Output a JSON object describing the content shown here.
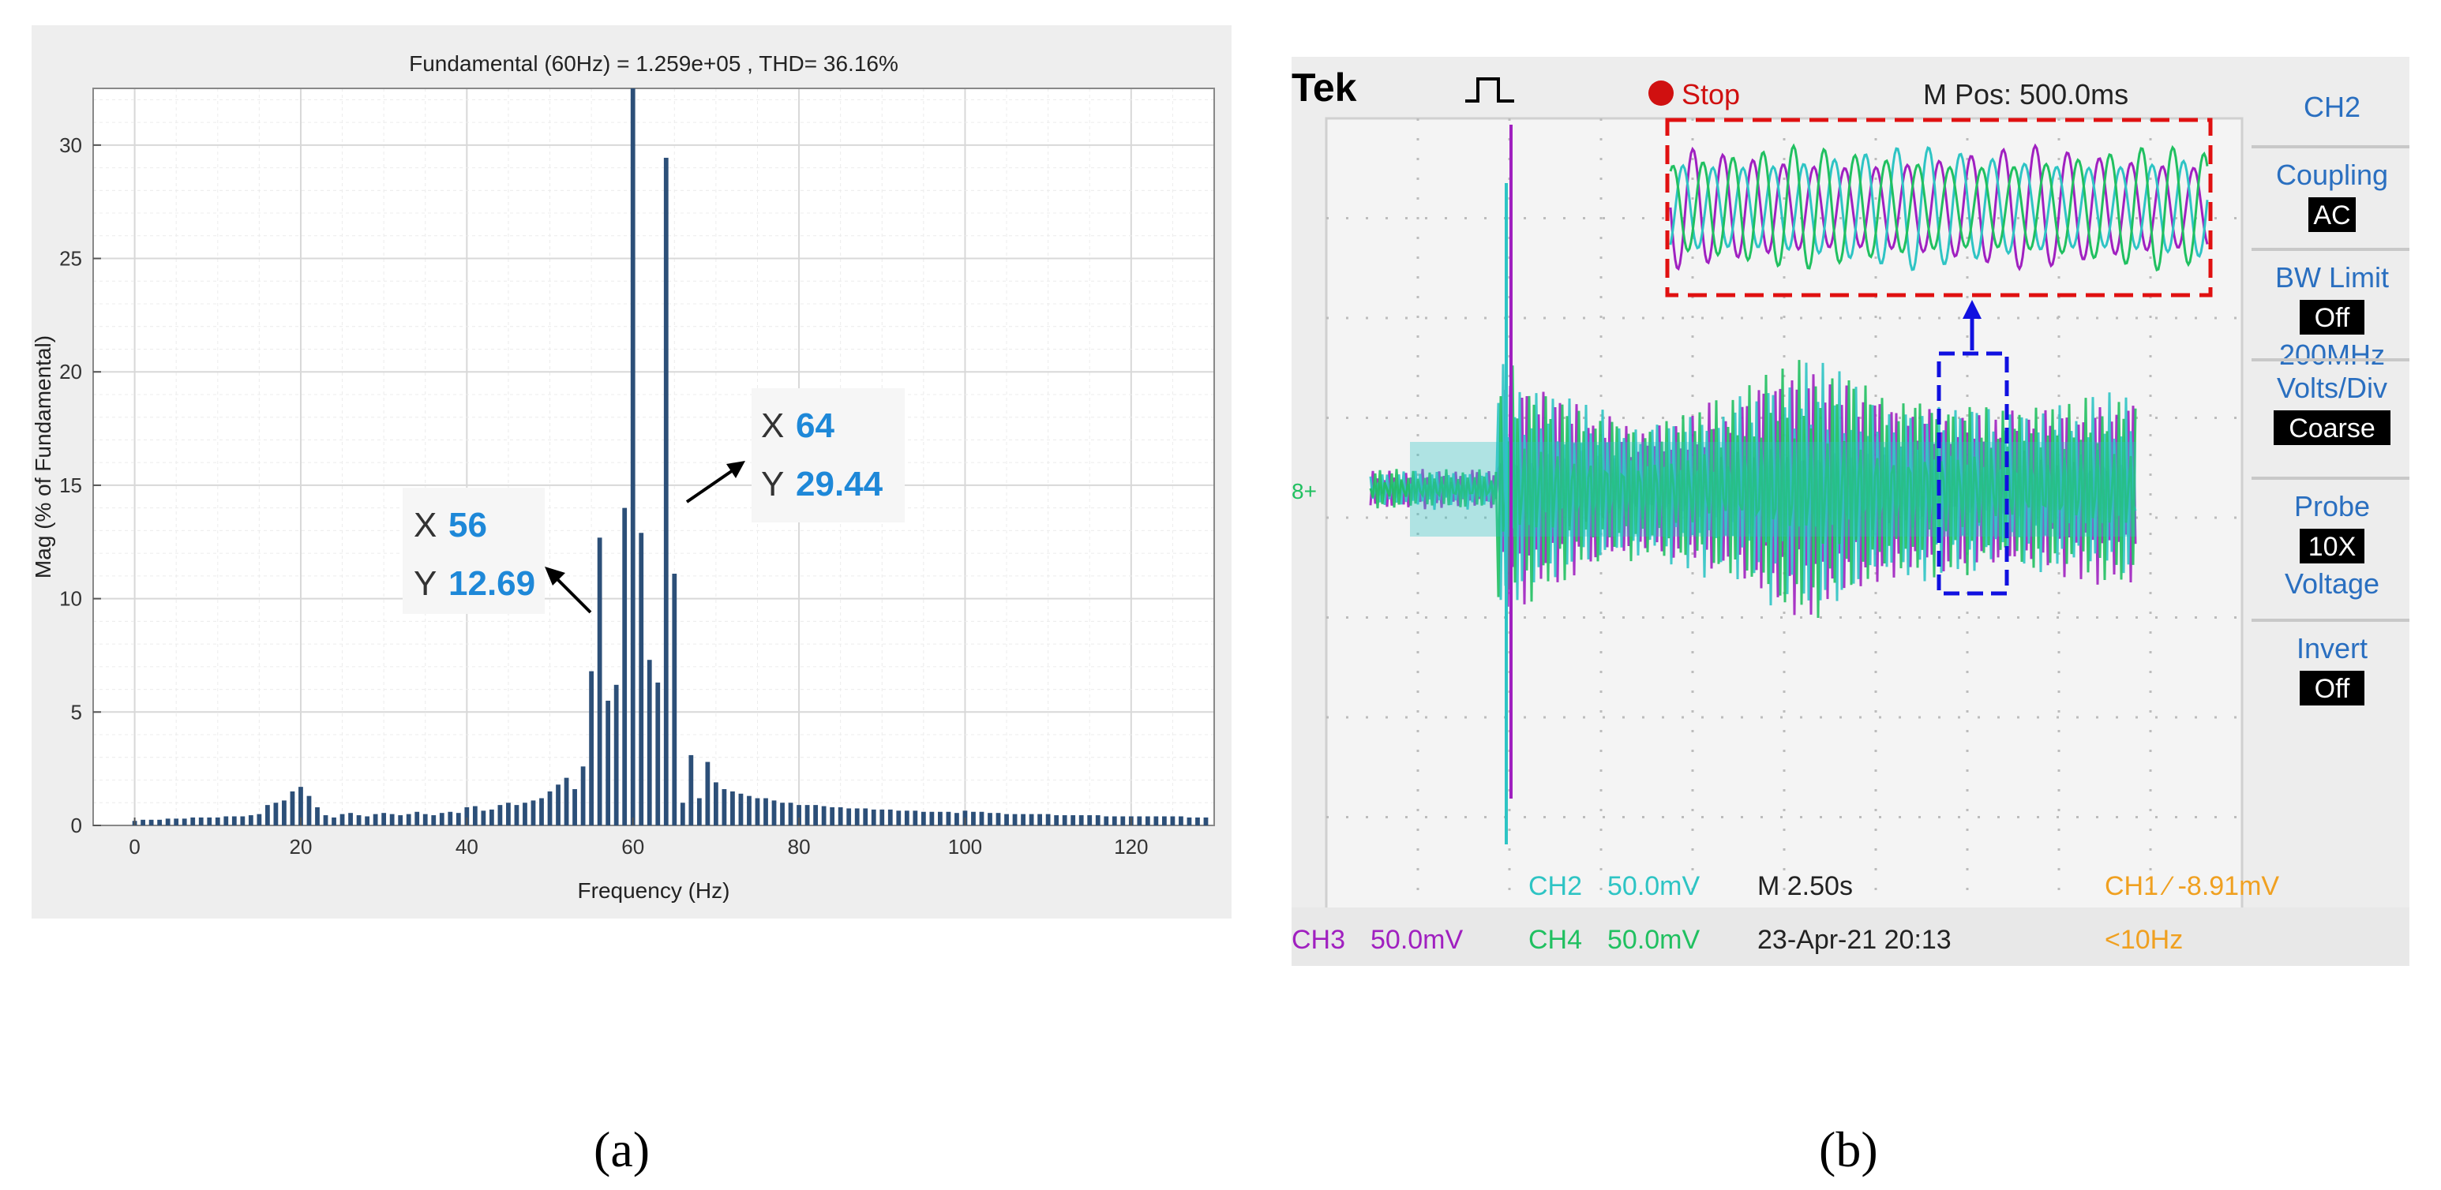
{
  "captions": {
    "a": "(a)",
    "b": "(b)"
  },
  "chart_data": [
    {
      "type": "bar",
      "title": "Fundamental (60Hz) = 1.259e+05 , THD= 36.16%",
      "xlabel": "Frequency (Hz)",
      "ylabel": "Mag (% of Fundamental)",
      "xlim": [
        -5,
        130
      ],
      "ylim": [
        0,
        32.5
      ],
      "xticks": [
        0,
        20,
        40,
        60,
        80,
        100,
        120
      ],
      "yticks": [
        0,
        5,
        10,
        15,
        20,
        25,
        30
      ],
      "grid": true,
      "bar_color": "#2c4f78",
      "x": [
        0,
        1,
        2,
        3,
        4,
        5,
        6,
        7,
        8,
        9,
        10,
        11,
        12,
        13,
        14,
        15,
        16,
        17,
        18,
        19,
        20,
        21,
        22,
        23,
        24,
        25,
        26,
        27,
        28,
        29,
        30,
        31,
        32,
        33,
        34,
        35,
        36,
        37,
        38,
        39,
        40,
        41,
        42,
        43,
        44,
        45,
        46,
        47,
        48,
        49,
        50,
        51,
        52,
        53,
        54,
        55,
        56,
        57,
        58,
        59,
        60,
        61,
        62,
        63,
        64,
        65,
        66,
        67,
        68,
        69,
        70,
        71,
        72,
        73,
        74,
        75,
        76,
        77,
        78,
        79,
        80,
        81,
        82,
        83,
        84,
        85,
        86,
        87,
        88,
        89,
        90,
        91,
        92,
        93,
        94,
        95,
        96,
        97,
        98,
        99,
        100,
        101,
        102,
        103,
        104,
        105,
        106,
        107,
        108,
        109,
        110,
        111,
        112,
        113,
        114,
        115,
        116,
        117,
        118,
        119,
        120,
        121,
        122,
        123,
        124,
        125,
        126,
        127,
        128,
        129
      ],
      "values": [
        0.2,
        0.25,
        0.25,
        0.25,
        0.3,
        0.3,
        0.3,
        0.35,
        0.35,
        0.35,
        0.35,
        0.4,
        0.4,
        0.4,
        0.45,
        0.5,
        0.9,
        1.0,
        1.1,
        1.5,
        1.7,
        1.3,
        0.8,
        0.45,
        0.35,
        0.5,
        0.55,
        0.45,
        0.4,
        0.5,
        0.55,
        0.5,
        0.45,
        0.5,
        0.6,
        0.5,
        0.45,
        0.55,
        0.6,
        0.55,
        0.8,
        0.85,
        0.65,
        0.7,
        0.9,
        1.0,
        0.9,
        1.0,
        1.1,
        1.2,
        1.5,
        1.8,
        2.1,
        1.6,
        2.6,
        6.8,
        12.69,
        5.5,
        6.2,
        14.0,
        32.5,
        12.9,
        7.3,
        6.3,
        29.44,
        11.1,
        1.0,
        3.1,
        1.2,
        2.8,
        1.9,
        1.6,
        1.5,
        1.4,
        1.3,
        1.2,
        1.2,
        1.1,
        1.0,
        1.0,
        0.9,
        0.9,
        0.9,
        0.85,
        0.8,
        0.8,
        0.75,
        0.75,
        0.75,
        0.7,
        0.7,
        0.7,
        0.65,
        0.65,
        0.65,
        0.6,
        0.6,
        0.6,
        0.6,
        0.55,
        0.65,
        0.6,
        0.6,
        0.55,
        0.55,
        0.5,
        0.5,
        0.5,
        0.5,
        0.5,
        0.5,
        0.45,
        0.45,
        0.45,
        0.45,
        0.45,
        0.45,
        0.4,
        0.4,
        0.4,
        0.4,
        0.4,
        0.4,
        0.4,
        0.4,
        0.4,
        0.4,
        0.35,
        0.35,
        0.35
      ],
      "annotations": [
        {
          "x_label": "X",
          "x_value": "56",
          "y_label": "Y",
          "y_value": "12.69"
        },
        {
          "x_label": "X",
          "x_value": "64",
          "y_label": "Y",
          "y_value": "29.44"
        }
      ]
    }
  ],
  "scope": {
    "brand": "Tek",
    "status": "Stop",
    "m_pos": "M Pos: 500.0ms",
    "menu": [
      {
        "label": "CH2",
        "value": ""
      },
      {
        "label": "Coupling",
        "value": "AC"
      },
      {
        "label": "BW Limit",
        "value": "Off",
        "extra": "200MHz"
      },
      {
        "label": "Volts/Div",
        "value": "Coarse"
      },
      {
        "label": "Probe",
        "value": "10X",
        "extra": "Voltage"
      },
      {
        "label": "Invert",
        "value": "Off"
      }
    ],
    "ch2": {
      "name": "CH2",
      "scale": "50.0mV"
    },
    "ch3": {
      "name": "CH3",
      "scale": "50.0mV"
    },
    "ch4": {
      "name": "CH4",
      "scale": "50.0mV"
    },
    "timebase": "M 2.50s",
    "datetime": "23-Apr-21 20:13",
    "trigger": "CH1 ∕ -8.91mV",
    "freq": "<10Hz",
    "ch_marker": "8+",
    "colors": {
      "ch2": "#2ec4c4",
      "ch3": "#a020c0",
      "ch4": "#20c060",
      "trigger": "#f0a020"
    }
  }
}
